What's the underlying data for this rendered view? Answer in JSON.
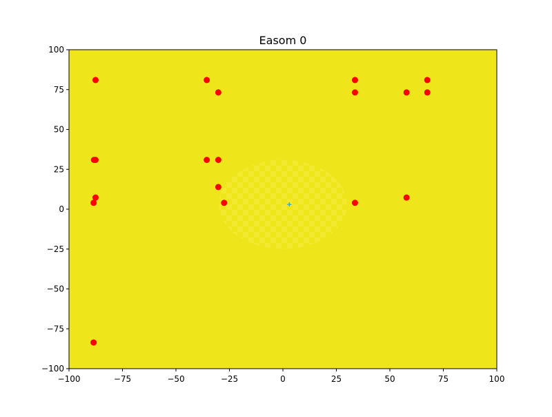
{
  "chart_data": {
    "type": "scatter",
    "title": "Easom 0",
    "xlabel": "",
    "ylabel": "",
    "xlim": [
      -100,
      100
    ],
    "ylim": [
      -100,
      100
    ],
    "xticks": [
      -100,
      -75,
      -50,
      -25,
      0,
      25,
      50,
      75,
      100
    ],
    "yticks": [
      -100,
      -75,
      -50,
      -25,
      0,
      25,
      50,
      75,
      100
    ],
    "xtick_labels": [
      "−100",
      "−75",
      "−50",
      "−25",
      "0",
      "25",
      "50",
      "75",
      "100"
    ],
    "ytick_labels": [
      "−100",
      "−75",
      "−50",
      "−25",
      "0",
      "25",
      "50",
      "75",
      "100"
    ],
    "grid": false,
    "background": {
      "kind": "contour-fill",
      "base_color": "#eee51a",
      "ripple_color": "#f2e82b",
      "ripple_center": [
        0,
        3
      ],
      "ripple_radius": [
        30,
        28
      ]
    },
    "series": [
      {
        "marker": "circle",
        "color": "#ff0000",
        "points": [
          [
            -87.6,
            81
          ],
          [
            -35.6,
            81
          ],
          [
            33.7,
            81
          ],
          [
            67.5,
            81
          ],
          [
            -30.2,
            73.2
          ],
          [
            33.7,
            73.2
          ],
          [
            57.8,
            73.2
          ],
          [
            67.5,
            73.2
          ],
          [
            -88.3,
            30.9
          ],
          [
            -87.6,
            30.9
          ],
          [
            -35.6,
            30.9
          ],
          [
            -30.2,
            30.9
          ],
          [
            -30.2,
            13.9
          ],
          [
            -87.6,
            7.3
          ],
          [
            57.8,
            7.3
          ],
          [
            -88.5,
            4.0
          ],
          [
            -27.5,
            4.0
          ],
          [
            33.7,
            4.0
          ],
          [
            -88.5,
            -83.6
          ]
        ]
      },
      {
        "marker": "plus",
        "color": "#17becf",
        "points": [
          [
            3,
            3
          ]
        ]
      }
    ]
  }
}
